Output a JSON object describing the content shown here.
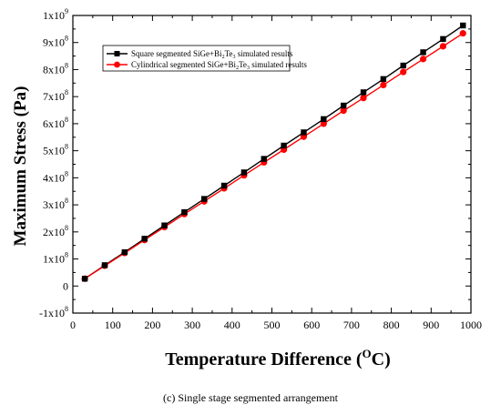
{
  "chart_data": {
    "type": "line",
    "xlabel": "Temperature Difference (",
    "xlabel_unit": "O",
    "xlabel_unit_tail": "C)",
    "ylabel": "Maximum Stress (Pa)",
    "xlim": [
      0,
      1000
    ],
    "ylim": [
      -100000000,
      1000000000
    ],
    "x_ticks": [
      0,
      100,
      200,
      300,
      400,
      500,
      600,
      700,
      800,
      900,
      1000
    ],
    "x_tick_labels": [
      "0",
      "100",
      "200",
      "300",
      "400",
      "500",
      "600",
      "700",
      "800",
      "900",
      "1000"
    ],
    "y_ticks": [
      -100000000,
      0,
      100000000,
      200000000,
      300000000,
      400000000,
      500000000,
      600000000,
      700000000,
      800000000,
      900000000,
      1000000000
    ],
    "y_tick_labels": [
      {
        "mant": "-1x10",
        "exp": "8"
      },
      {
        "mant": "0",
        "exp": ""
      },
      {
        "mant": "1x10",
        "exp": "8"
      },
      {
        "mant": "2x10",
        "exp": "8"
      },
      {
        "mant": "3x10",
        "exp": "8"
      },
      {
        "mant": "4x10",
        "exp": "8"
      },
      {
        "mant": "5x10",
        "exp": "8"
      },
      {
        "mant": "6x10",
        "exp": "8"
      },
      {
        "mant": "7x10",
        "exp": "8"
      },
      {
        "mant": "8x10",
        "exp": "8"
      },
      {
        "mant": "9x10",
        "exp": "8"
      },
      {
        "mant": "1x10",
        "exp": "9"
      }
    ],
    "legend_position": "top-left",
    "x": [
      30,
      80,
      130,
      180,
      230,
      280,
      330,
      380,
      430,
      480,
      530,
      580,
      630,
      680,
      730,
      780,
      830,
      880,
      930,
      980
    ],
    "series": [
      {
        "legend": {
          "pre": "Square segmented SiGe+Bi",
          "sub1": "2",
          "mid": "Te",
          "sub2": "3",
          "post": " simulated results"
        },
        "color": "#000000",
        "marker": "square",
        "values": [
          27000000,
          77000000,
          125000000,
          175000000,
          224000000,
          273000000,
          322000000,
          371000000,
          420000000,
          470000000,
          519000000,
          568000000,
          617000000,
          667000000,
          716000000,
          765000000,
          815000000,
          864000000,
          913000000,
          963000000
        ]
      },
      {
        "legend": {
          "pre": "Cylindrical segmented SiGe+Bi",
          "sub1": "2",
          "mid": "Te",
          "sub2": "3",
          "post": " simulated results"
        },
        "color": "#ff0000",
        "marker": "circle",
        "values": [
          27000000,
          75000000,
          122000000,
          170000000,
          218000000,
          266000000,
          313000000,
          361000000,
          409000000,
          457000000,
          504000000,
          552000000,
          600000000,
          648000000,
          695000000,
          743000000,
          791000000,
          839000000,
          886000000,
          934000000
        ]
      }
    ]
  },
  "caption": "(c) Single stage segmented arrangement"
}
